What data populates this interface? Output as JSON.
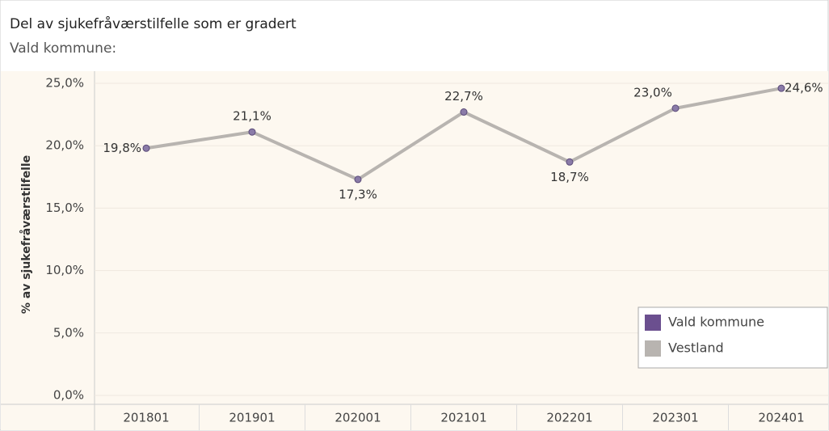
{
  "chart_data": {
    "type": "line",
    "title": "Del av sjukefråværstilfelle som er gradert",
    "subtitle": "Vald kommune:",
    "y_label": "% av sjukefråværstilfelle",
    "categories": [
      "201801",
      "201901",
      "202001",
      "202101",
      "202201",
      "202301",
      "202401"
    ],
    "series": [
      {
        "name": "Vald kommune",
        "color": "#6b4f8f",
        "values": [
          null,
          null,
          null,
          null,
          null,
          null,
          null
        ]
      },
      {
        "name": "Vestland",
        "color": "#b8b4b0",
        "values": [
          19.8,
          21.1,
          17.3,
          22.7,
          18.7,
          23.0,
          24.6
        ],
        "value_labels": [
          "19,8%",
          "21,1%",
          "17,3%",
          "22,7%",
          "18,7%",
          "23,0%",
          "24,6%"
        ]
      }
    ],
    "label_color": "#7a5fa0",
    "ylim": [
      0,
      25
    ],
    "yticks": [
      {
        "value": 0,
        "label": "0,0%"
      },
      {
        "value": 5,
        "label": "5,0%"
      },
      {
        "value": 10,
        "label": "10,0%"
      },
      {
        "value": 15,
        "label": "15,0%"
      },
      {
        "value": 20,
        "label": "20,0%"
      },
      {
        "value": 25,
        "label": "25,0%"
      }
    ],
    "grid": true,
    "legend": "lower right"
  }
}
